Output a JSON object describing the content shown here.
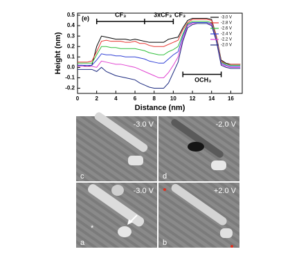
{
  "chart_data": {
    "type": "line",
    "xlabel": "Distance (nm)",
    "ylabel": "Height (nm)",
    "annotations": [
      "(e)",
      "CF₃",
      "3xCF₃",
      "CF₃",
      "OCH₃"
    ],
    "x": [
      0,
      0.5,
      1,
      1.5,
      2,
      2.5,
      3,
      3.5,
      4,
      4.5,
      5,
      5.5,
      6,
      6.5,
      7,
      7.5,
      8,
      8.5,
      9,
      9.5,
      10,
      10.5,
      11,
      11.5,
      12,
      12.5,
      13,
      13.5,
      14,
      14.5,
      15,
      15.5,
      16,
      16.5,
      17
    ],
    "series": [
      {
        "name": "-3.0 V",
        "color": "#000000",
        "values": [
          0.02,
          0.02,
          0.01,
          0.02,
          0.2,
          0.3,
          0.29,
          0.28,
          0.27,
          0.27,
          0.27,
          0.26,
          0.27,
          0.26,
          0.25,
          0.24,
          0.24,
          0.24,
          0.24,
          0.27,
          0.28,
          0.29,
          0.38,
          0.45,
          0.47,
          0.47,
          0.47,
          0.47,
          0.46,
          0.3,
          0.07,
          0.04,
          0.03,
          0.03,
          0.03
        ]
      },
      {
        "name": "-2.8 V",
        "color": "#e8322d",
        "values": [
          0.05,
          0.05,
          0.05,
          0.06,
          0.15,
          0.25,
          0.26,
          0.25,
          0.25,
          0.25,
          0.24,
          0.24,
          0.25,
          0.23,
          0.23,
          0.21,
          0.2,
          0.2,
          0.2,
          0.22,
          0.24,
          0.26,
          0.36,
          0.43,
          0.46,
          0.46,
          0.46,
          0.46,
          0.45,
          0.3,
          0.06,
          0.03,
          0.03,
          0.03,
          0.03
        ]
      },
      {
        "name": "-2.6 V",
        "color": "#2fbf3a",
        "values": [
          0.04,
          0.04,
          0.04,
          0.04,
          0.12,
          0.2,
          0.2,
          0.19,
          0.19,
          0.18,
          0.18,
          0.18,
          0.18,
          0.17,
          0.16,
          0.14,
          0.13,
          0.12,
          0.12,
          0.15,
          0.17,
          0.2,
          0.32,
          0.42,
          0.44,
          0.44,
          0.44,
          0.44,
          0.43,
          0.28,
          0.05,
          0.03,
          0.02,
          0.02,
          0.02
        ]
      },
      {
        "name": "-2.4 V",
        "color": "#2f3fd6",
        "values": [
          0.02,
          0.02,
          0.02,
          0.02,
          0.07,
          0.13,
          0.12,
          0.12,
          0.11,
          0.11,
          0.1,
          0.1,
          0.1,
          0.09,
          0.08,
          0.06,
          0.05,
          0.04,
          0.04,
          0.08,
          0.12,
          0.15,
          0.3,
          0.41,
          0.43,
          0.43,
          0.43,
          0.43,
          0.42,
          0.27,
          0.04,
          0.02,
          0.01,
          0.01,
          0.01
        ]
      },
      {
        "name": "-2.2 V",
        "color": "#e040d0",
        "values": [
          0.01,
          0.01,
          0.01,
          0.01,
          0.0,
          0.06,
          0.05,
          0.04,
          0.03,
          0.03,
          0.02,
          0.01,
          0.0,
          -0.02,
          -0.04,
          -0.06,
          -0.08,
          -0.1,
          -0.1,
          -0.05,
          0.02,
          0.1,
          0.27,
          0.4,
          0.42,
          0.42,
          0.42,
          0.42,
          0.41,
          0.26,
          0.03,
          0.01,
          0.0,
          0.0,
          0.0
        ]
      },
      {
        "name": "-2.0 V",
        "color": "#1c2a80",
        "values": [
          -0.02,
          -0.02,
          -0.02,
          -0.02,
          -0.04,
          0.0,
          -0.04,
          -0.06,
          -0.08,
          -0.09,
          -0.1,
          -0.11,
          -0.12,
          -0.15,
          -0.17,
          -0.19,
          -0.2,
          -0.2,
          -0.2,
          -0.15,
          -0.05,
          0.05,
          0.25,
          0.38,
          0.41,
          0.42,
          0.42,
          0.42,
          0.4,
          0.25,
          0.02,
          0.0,
          -0.01,
          -0.01,
          -0.01
        ]
      }
    ],
    "xlim": [
      0,
      17.2
    ],
    "ylim": [
      -0.25,
      0.52
    ],
    "xticks": [
      0,
      2,
      4,
      6,
      8,
      10,
      12,
      14,
      16
    ],
    "yticks": [
      -0.2,
      -0.1,
      {
        "value": 0,
        "label": "0.0"
      },
      0.1,
      0.2,
      0.3,
      0.4,
      0.5
    ],
    "legend": "upper-right"
  },
  "images": [
    {
      "voltage": "-3.0 V",
      "label": "c"
    },
    {
      "voltage": "-2.0 V",
      "label": "d"
    },
    {
      "voltage": "-3.0 V",
      "label": "a",
      "marker": "*"
    },
    {
      "voltage": "+2.0 V",
      "label": "b"
    }
  ]
}
